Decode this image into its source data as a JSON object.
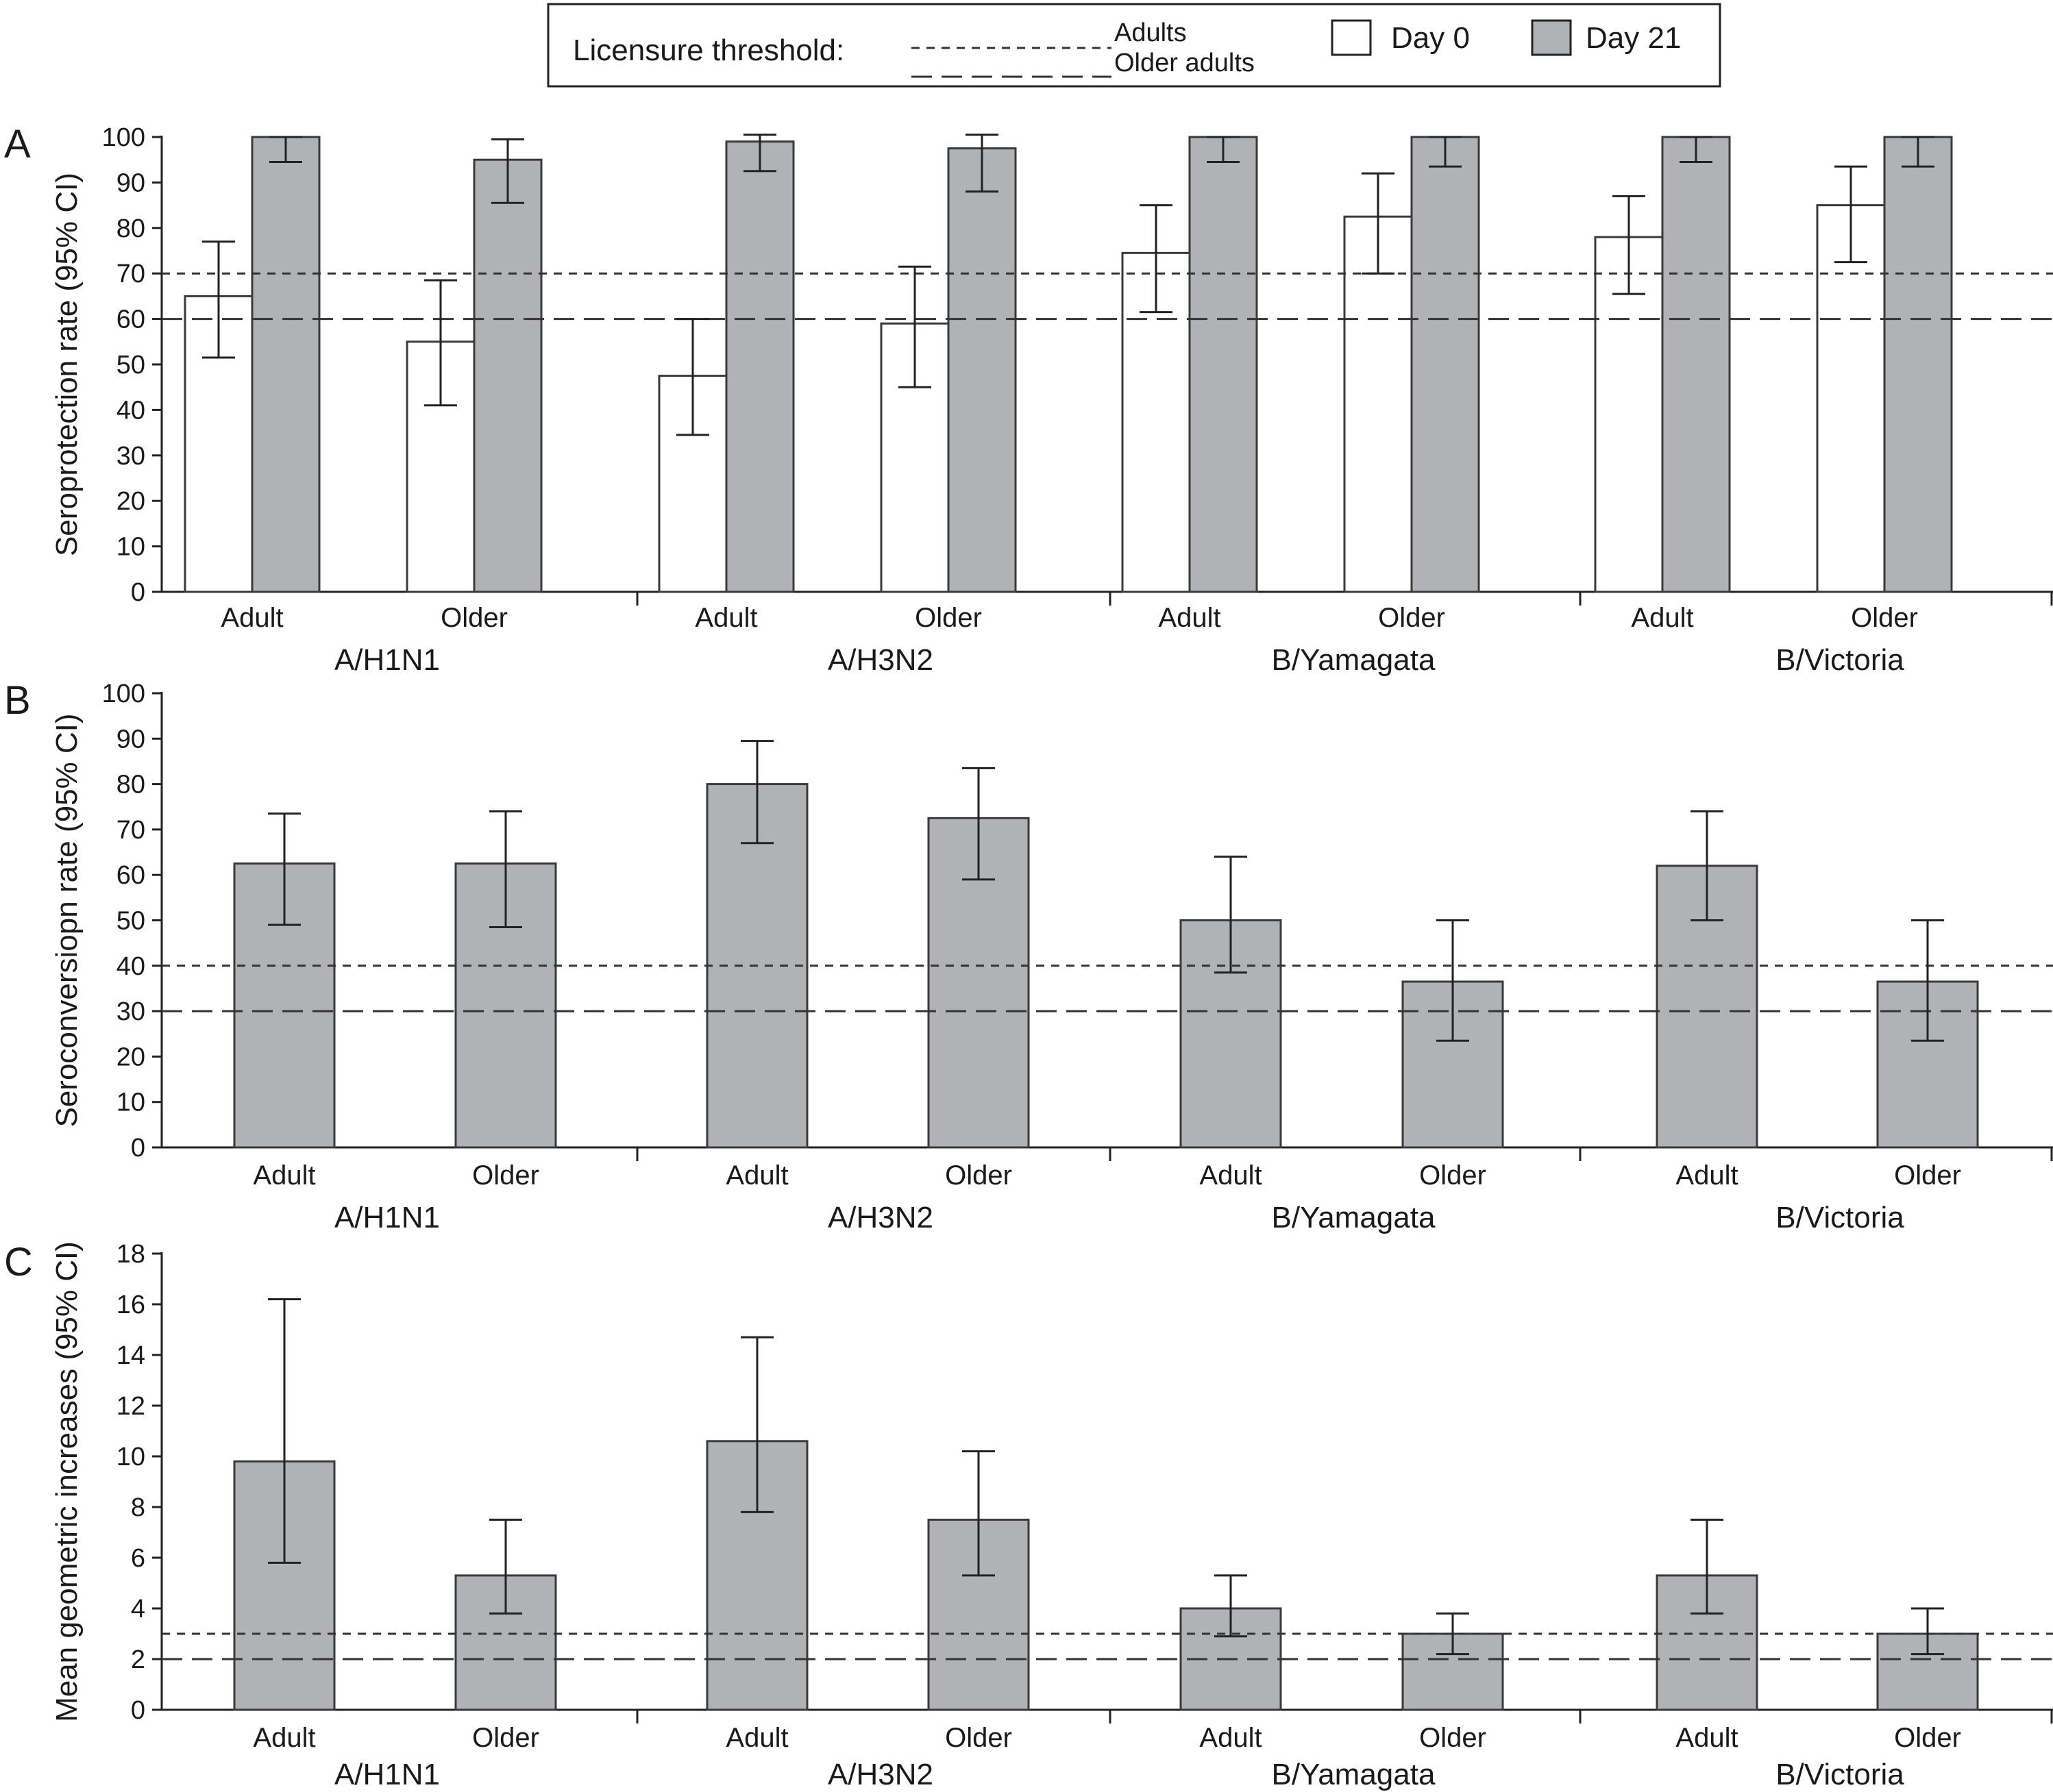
{
  "legend": {
    "threshold_label": "Licensure threshold:",
    "adults_label": "Adults",
    "older_label": "Older adults",
    "day0_label": "Day 0",
    "day21_label": "Day 21"
  },
  "colors": {
    "day0_fill": "#ffffff",
    "day21_fill": "#b0b2b5",
    "bar_stroke": "#3a3a3a",
    "axis": "#222222",
    "threshold_line": "#333333"
  },
  "chart_data": [
    {
      "panel": "A",
      "type": "bar",
      "ylabel": "Seroprotection rate (95% CI)",
      "ylim": [
        0,
        100
      ],
      "yticks": [
        0,
        10,
        20,
        30,
        40,
        50,
        60,
        70,
        80,
        90,
        100
      ],
      "groups": [
        "A/H1N1",
        "A/H3N2",
        "B/Yamagata",
        "B/Victoria"
      ],
      "subcategories": [
        "Adult",
        "Older",
        "Adult",
        "Older",
        "Adult",
        "Older",
        "Adult",
        "Older"
      ],
      "series": [
        {
          "name": "Day 0",
          "values": [
            65,
            55,
            47.5,
            59,
            74.5,
            82.5,
            78,
            85
          ],
          "ci_low": [
            51.5,
            41,
            34.5,
            45,
            61.5,
            70,
            65.5,
            72.5
          ],
          "ci_high": [
            77,
            68.5,
            60,
            71.5,
            85,
            92,
            87,
            93.5
          ]
        },
        {
          "name": "Day 21",
          "values": [
            100,
            95,
            99,
            97.5,
            100,
            100,
            100,
            100
          ],
          "ci_low": [
            94.5,
            85.5,
            92.5,
            88,
            94.5,
            93.5,
            94.5,
            93.5
          ],
          "ci_high": [
            100,
            99.5,
            100.5,
            100.5,
            100,
            100,
            100,
            100
          ]
        }
      ],
      "thresholds": [
        {
          "name": "Adults",
          "value": 70
        },
        {
          "name": "Older adults",
          "value": 60
        }
      ]
    },
    {
      "panel": "B",
      "type": "bar",
      "ylabel": "Seroconversiopn rate (95% CI)",
      "ylim": [
        0,
        100
      ],
      "yticks": [
        0,
        10,
        20,
        30,
        40,
        50,
        60,
        70,
        80,
        90,
        100
      ],
      "groups": [
        "A/H1N1",
        "A/H3N2",
        "B/Yamagata",
        "B/Victoria"
      ],
      "subcategories": [
        "Adult",
        "Older",
        "Adult",
        "Older",
        "Adult",
        "Older",
        "Adult",
        "Older"
      ],
      "series": [
        {
          "name": "Day 21",
          "values": [
            62.5,
            62.5,
            80,
            72.5,
            50,
            36.5,
            62,
            36.5
          ],
          "ci_low": [
            49,
            48.5,
            67,
            59,
            38.5,
            23.5,
            50,
            23.5
          ],
          "ci_high": [
            73.5,
            74,
            89.5,
            83.5,
            64,
            50,
            74,
            50
          ]
        }
      ],
      "thresholds": [
        {
          "name": "Adults",
          "value": 40
        },
        {
          "name": "Older adults",
          "value": 30
        }
      ]
    },
    {
      "panel": "C",
      "type": "bar",
      "ylabel": "Mean geometric increases (95% CI)",
      "ylim": [
        0,
        18
      ],
      "yticks": [
        0,
        2,
        4,
        6,
        8,
        10,
        12,
        14,
        16,
        18
      ],
      "groups": [
        "A/H1N1",
        "A/H3N2",
        "B/Yamagata",
        "B/Victoria"
      ],
      "subcategories": [
        "Adult",
        "Older",
        "Adult",
        "Older",
        "Adult",
        "Older",
        "Adult",
        "Older"
      ],
      "series": [
        {
          "name": "Day 21",
          "values": [
            9.8,
            5.3,
            10.6,
            7.5,
            4,
            3,
            5.3,
            3
          ],
          "ci_low": [
            5.8,
            3.8,
            7.8,
            5.3,
            2.9,
            2.2,
            3.8,
            2.2
          ],
          "ci_high": [
            16.2,
            7.5,
            14.7,
            10.2,
            5.3,
            3.8,
            7.5,
            4
          ]
        }
      ],
      "thresholds": [
        {
          "name": "Adults",
          "value": 3
        },
        {
          "name": "Older adults",
          "value": 2
        }
      ]
    }
  ]
}
